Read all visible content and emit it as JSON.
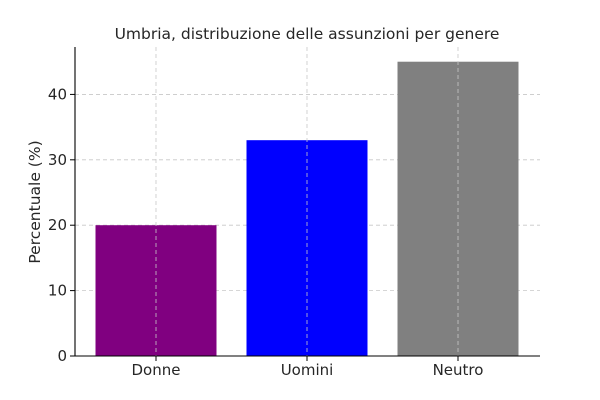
{
  "chart_data": {
    "type": "bar",
    "title": "Umbria, distribuzione delle assunzioni per genere",
    "xlabel": "",
    "ylabel": "Percentuale (%)",
    "categories": [
      "Donne",
      "Uomini",
      "Neutro"
    ],
    "values": [
      20,
      33,
      45
    ],
    "colors": [
      "#800080",
      "#0000ff",
      "#808080"
    ],
    "ylim": [
      0,
      47.25
    ],
    "yticks": [
      0,
      10,
      20,
      30,
      40
    ],
    "grid": true
  }
}
